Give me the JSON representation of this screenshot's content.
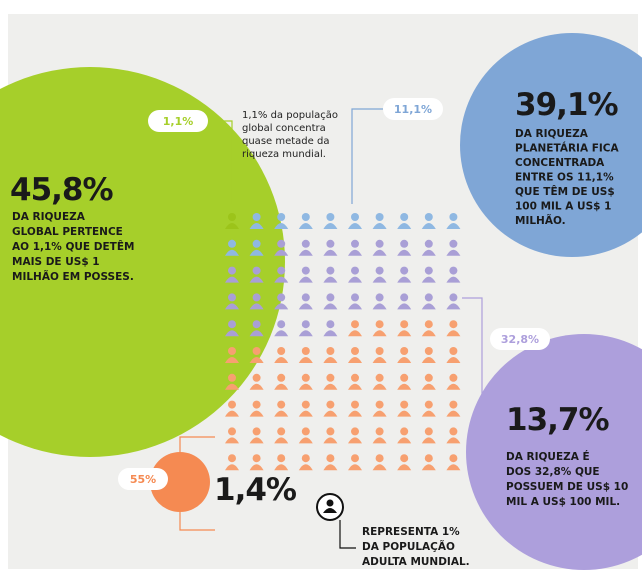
{
  "green": {
    "tag": "1,1%",
    "big": "45,8%",
    "text": [
      "DA RIQUEZA",
      "GLOBAL PERTENCE",
      "AO 1,1% QUE DETÊM",
      "MAIS DE US$ 1",
      "MILHÃO EM POSSES."
    ]
  },
  "note": {
    "text": [
      "1,1% da população",
      "global concentra",
      "quase metade da",
      "riqueza mundial."
    ]
  },
  "blue": {
    "tag": "11,1%",
    "big": "39,1%",
    "text": [
      "DA RIQUEZA",
      "PLANETÁRIA FICA",
      "CONCENTRADA",
      "ENTRE OS 11,1%",
      "QUE TÊM DE US$",
      "100 MIL A US$ 1",
      "MILHÃO."
    ]
  },
  "purple": {
    "tag": "32,8%",
    "big": "13,7%",
    "text": [
      "DA RIQUEZA É",
      "DOS 32,8% QUE",
      "POSSUEM DE US$ 10",
      "MIL A US$ 100 MIL."
    ]
  },
  "orange": {
    "tag": "55%",
    "big": "1,4%"
  },
  "legend": {
    "text": [
      "REPRESENTA 1%",
      "DA POPULAÇÃO",
      "ADULTA MUNDIAL."
    ]
  }
}
